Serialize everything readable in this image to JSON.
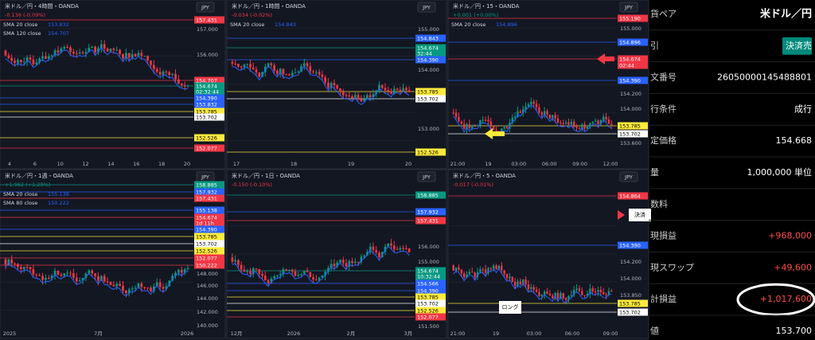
{
  "charts": [
    {
      "title": "米ドル／円・4時間・OANDA",
      "change": "-0.136 (-0.09%)",
      "currency": "JPY",
      "indicators": [
        {
          "name": "SMA 20 close",
          "value": "153.832"
        },
        {
          "name": "SMA 120 close",
          "value": "154.707"
        }
      ],
      "axis_labels": [
        "157.000",
        "156.000"
      ],
      "price_tags": [
        {
          "text": "157.431",
          "color": "#f23645"
        },
        {
          "text": "154.707",
          "color": "#f23645"
        },
        {
          "text": "154.674",
          "color": "#089981"
        },
        {
          "text": "02:32:44",
          "color": "#089981"
        },
        {
          "text": "154.390",
          "color": "#2962ff"
        },
        {
          "text": "153.832",
          "color": "#2962ff"
        },
        {
          "text": "153.785",
          "color": "#ffeb3b"
        },
        {
          "text": "153.702",
          "color": "#ffffff"
        },
        {
          "text": "152.526",
          "color": "#ffeb3b"
        },
        {
          "text": "152.077",
          "color": "#f23645"
        }
      ],
      "x_labels": [
        "4",
        "6",
        "10",
        "12",
        "14",
        "16",
        "18",
        "20"
      ],
      "annotations": []
    },
    {
      "title": "米ドル／円・1時間・OANDA",
      "change": "-0.034 (-0.02%)",
      "currency": "JPY",
      "indicators": [
        {
          "name": "SMA 20 close",
          "value": "154.843"
        }
      ],
      "axis_labels": [
        "155.000",
        "154.000",
        "153.000"
      ],
      "price_tags": [
        {
          "text": "154.843",
          "color": "#2962ff"
        },
        {
          "text": "154.674",
          "color": "#089981"
        },
        {
          "text": "32:44",
          "color": "#089981"
        },
        {
          "text": "154.390",
          "color": "#2962ff"
        },
        {
          "text": "153.785",
          "color": "#ffeb3b"
        },
        {
          "text": "153.702",
          "color": "#ffffff"
        },
        {
          "text": "152.526",
          "color": "#ffeb3b"
        }
      ],
      "x_labels": [
        "17",
        "18",
        "19",
        "20"
      ],
      "annotations": []
    },
    {
      "title": "米ドル／円・15・OANDA",
      "change": "+0.001 (+0.00%)",
      "currency": "JPY",
      "indicators": [
        {
          "name": "SMA 20 close",
          "value": "154.896"
        }
      ],
      "axis_labels": [
        "155.000",
        "154.200",
        "154.000",
        "153.600"
      ],
      "price_tags": [
        {
          "text": "155.190",
          "color": "#f23645"
        },
        {
          "text": "154.896",
          "color": "#2962ff"
        },
        {
          "text": "154.674",
          "color": "#f23645"
        },
        {
          "text": "02:44",
          "color": "#f23645"
        },
        {
          "text": "154.390",
          "color": "#2962ff"
        },
        {
          "text": "153.785",
          "color": "#ffeb3b"
        },
        {
          "text": "153.702",
          "color": "#ffffff"
        }
      ],
      "x_labels": [
        "21:00",
        "19",
        "03:00",
        "06:00",
        "09:00",
        "12:00"
      ],
      "annotations": []
    },
    {
      "title": "米ドル／円・1週・OANDA",
      "change": "+1.962 (+1.29%)",
      "currency": "JPY",
      "indicators": [
        {
          "name": "SMA 20 close",
          "value": "155.138"
        },
        {
          "name": "SMA 80 close",
          "value": "150.222"
        }
      ],
      "axis_labels": [
        "148.000",
        "146.000",
        "144.000",
        "142.000",
        "140.000"
      ],
      "price_tags": [
        {
          "text": "158.885",
          "color": "#089981"
        },
        {
          "text": "157.932",
          "color": "#2962ff"
        },
        {
          "text": "157.431",
          "color": "#f23645"
        },
        {
          "text": "155.138",
          "color": "#2962ff"
        },
        {
          "text": "154.674",
          "color": "#f23645"
        },
        {
          "text": "1d 11h",
          "color": "#f23645"
        },
        {
          "text": "154.390",
          "color": "#2962ff"
        },
        {
          "text": "153.785",
          "color": "#ffeb3b"
        },
        {
          "text": "153.702",
          "color": "#ffffff"
        },
        {
          "text": "152.526",
          "color": "#ffeb3b"
        },
        {
          "text": "152.077",
          "color": "#f23645"
        },
        {
          "text": "150.222",
          "color": "#f23645"
        }
      ],
      "x_labels": [
        "2025",
        "7月",
        "2026"
      ],
      "annotations": []
    },
    {
      "title": "米ドル／円・1日・OANDA",
      "change": "-0.150 (-0.10%)",
      "currency": "JPY",
      "indicators": [],
      "axis_labels": [
        "156.000",
        "155.000",
        "151.500"
      ],
      "price_tags": [
        {
          "text": "158.885",
          "color": "#089981"
        },
        {
          "text": "157.932",
          "color": "#2962ff"
        },
        {
          "text": "157.431",
          "color": "#f23645"
        },
        {
          "text": "154.674",
          "color": "#089981"
        },
        {
          "text": "10:32:44",
          "color": "#089981"
        },
        {
          "text": "154.566",
          "color": "#2962ff"
        },
        {
          "text": "154.390",
          "color": "#2962ff"
        },
        {
          "text": "153.785",
          "color": "#ffeb3b"
        },
        {
          "text": "153.702",
          "color": "#ffffff"
        },
        {
          "text": "152.526",
          "color": "#ffeb3b"
        },
        {
          "text": "152.077",
          "color": "#f23645"
        }
      ],
      "x_labels": [
        "12月",
        "2026",
        "2月",
        "3月"
      ],
      "annotations": []
    },
    {
      "title": "米ドル／円・5・OANDA",
      "change": "-0.017 (-0.01%)",
      "currency": "JPY",
      "indicators": [],
      "axis_labels": [
        "154.200",
        "154.000",
        "153.850"
      ],
      "price_tags": [
        {
          "text": "154.864",
          "color": "#f23645"
        },
        {
          "text": "154.390",
          "color": "#2962ff"
        },
        {
          "text": "153.785",
          "color": "#ffeb3b"
        },
        {
          "text": "153.702",
          "color": "#ffffff"
        }
      ],
      "x_labels": [
        "21:00",
        "19",
        "03:00",
        "06:00",
        "09:00"
      ],
      "annotations": [
        "決済",
        "ロング"
      ]
    }
  ],
  "order": {
    "rows": [
      {
        "label": "貨ペア",
        "value": "米ドル／円"
      },
      {
        "label": "引",
        "value": "決済売"
      },
      {
        "label": "文番号",
        "value": "26050000145488801"
      },
      {
        "label": "行条件",
        "value": "成行"
      },
      {
        "label": "定価格",
        "value": "154.668"
      },
      {
        "label": "量",
        "value": "1,000,000 単位"
      },
      {
        "label": "数料",
        "value": null
      },
      {
        "label": "現損益",
        "value": "+968,000"
      },
      {
        "label": "現スワップ",
        "value": "+49,600"
      },
      {
        "label": "計損益",
        "value": "+1,017,600"
      },
      {
        "label": "値",
        "value": "153.700"
      }
    ]
  }
}
